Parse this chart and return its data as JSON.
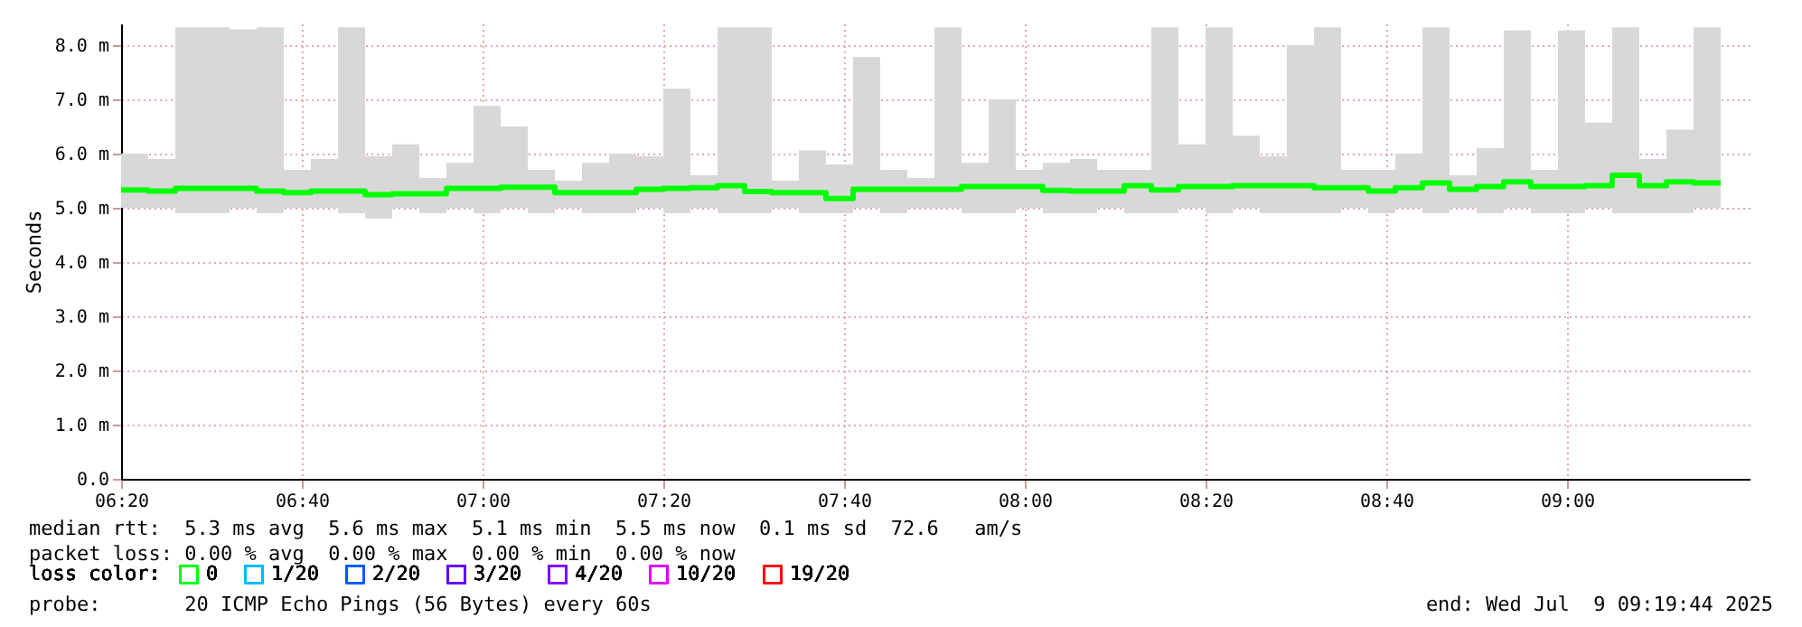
{
  "chart_data": {
    "type": "step",
    "ylabel": "Seconds",
    "legend_title": "loss color:",
    "legend": "bottom left",
    "grid": true,
    "marker": "none",
    "line_style": "solid",
    "x": [
      6.3333,
      6.3833,
      6.4333,
      6.4833,
      6.5333,
      6.5833,
      6.6333,
      6.6833,
      6.7333,
      6.7833,
      6.8333,
      6.8833,
      6.9333,
      6.9833,
      7.0333,
      7.0833,
      7.1333,
      7.1833,
      7.2333,
      7.2833,
      7.3333,
      7.3833,
      7.4333,
      7.4833,
      7.5333,
      7.5833,
      7.6333,
      7.6833,
      7.7333,
      7.7833,
      7.8333,
      7.8833,
      7.9333,
      7.9833,
      8.0333,
      8.0833,
      8.1333,
      8.1833,
      8.2333,
      8.2833,
      8.3333,
      8.3833,
      8.4333,
      8.4833,
      8.5333,
      8.5833,
      8.6333,
      8.6833,
      8.7333,
      8.7833,
      8.8333,
      8.8833,
      8.9333,
      8.9833,
      9.0333,
      9.0833,
      9.1333,
      9.1833,
      9.2333,
      9.2833
    ],
    "xlim": [
      6.3333,
      9.3367
    ],
    "xticks": [
      {
        "value": 6.3333,
        "label": "06:20"
      },
      {
        "value": 6.6667,
        "label": "06:40"
      },
      {
        "value": 7,
        "label": "07:00"
      },
      {
        "value": 7.3333,
        "label": "07:20"
      },
      {
        "value": 7.6667,
        "label": "07:40"
      },
      {
        "value": 8,
        "label": "08:00"
      },
      {
        "value": 8.3333,
        "label": "08:20"
      },
      {
        "value": 8.6667,
        "label": "08:40"
      },
      {
        "value": 9,
        "label": "09:00"
      }
    ],
    "ylim": [
      0,
      8.4
    ],
    "yticks": [
      {
        "value": 0,
        "label": "0.0"
      },
      {
        "value": 1,
        "label": "1.0 m"
      },
      {
        "value": 2,
        "label": "2.0 m"
      },
      {
        "value": 3,
        "label": "3.0 m"
      },
      {
        "value": 4,
        "label": "4.0 m"
      },
      {
        "value": 5,
        "label": "5.0 m"
      },
      {
        "value": 6,
        "label": "6.0 m"
      },
      {
        "value": 7,
        "label": "7.0 m"
      },
      {
        "value": 8,
        "label": "8.0 m"
      }
    ],
    "series": [
      {
        "name": "0",
        "color": "#00ff00",
        "values": [
          5.33,
          5.31,
          5.36,
          5.36,
          5.36,
          5.31,
          5.28,
          5.31,
          5.31,
          5.24,
          5.26,
          5.26,
          5.36,
          5.36,
          5.38,
          5.38,
          5.28,
          5.28,
          5.28,
          5.34,
          5.36,
          5.37,
          5.41,
          5.3,
          5.28,
          5.28,
          5.17,
          5.34,
          5.34,
          5.34,
          5.34,
          5.39,
          5.39,
          5.39,
          5.32,
          5.31,
          5.31,
          5.41,
          5.33,
          5.39,
          5.39,
          5.41,
          5.41,
          5.41,
          5.37,
          5.37,
          5.31,
          5.37,
          5.46,
          5.34,
          5.39,
          5.48,
          5.39,
          5.39,
          5.41,
          5.6,
          5.41,
          5.48,
          5.46,
          5.46
        ],
        "lower": [
          5.0,
          5.0,
          4.9,
          4.9,
          5.0,
          4.9,
          5.0,
          5.0,
          4.9,
          4.8,
          5.0,
          4.9,
          5.0,
          4.9,
          5.0,
          4.9,
          5.0,
          4.9,
          4.9,
          5.0,
          4.9,
          5.0,
          4.9,
          4.9,
          5.0,
          4.9,
          4.9,
          5.0,
          4.9,
          5.0,
          5.0,
          4.9,
          4.9,
          5.0,
          4.9,
          4.9,
          5.0,
          4.9,
          4.9,
          5.0,
          4.9,
          5.0,
          4.9,
          4.9,
          4.9,
          5.0,
          4.9,
          5.0,
          4.9,
          5.0,
          4.9,
          5.0,
          4.9,
          4.9,
          5.0,
          4.9,
          4.9,
          4.9,
          5.0,
          4.9
        ],
        "upper": [
          6.0,
          5.9,
          8.33,
          8.33,
          8.29,
          8.33,
          5.7,
          5.9,
          8.33,
          5.95,
          6.17,
          5.55,
          5.83,
          6.88,
          6.5,
          5.7,
          5.5,
          5.83,
          6.0,
          5.95,
          7.2,
          5.6,
          8.33,
          8.33,
          5.5,
          6.06,
          5.8,
          7.78,
          5.7,
          5.55,
          8.33,
          5.83,
          7.0,
          5.7,
          5.83,
          5.9,
          5.7,
          5.7,
          8.33,
          6.17,
          8.33,
          6.33,
          5.95,
          8.0,
          8.33,
          5.7,
          5.7,
          6.0,
          8.33,
          5.6,
          6.1,
          8.27,
          5.7,
          8.27,
          6.57,
          8.33,
          5.9,
          6.44,
          8.33,
          8.33
        ]
      },
      {
        "name": "1/20",
        "color": "#00b8ff",
        "values": [
          null,
          null,
          null,
          null,
          null,
          null,
          null,
          null,
          null,
          null,
          null,
          null,
          null,
          null,
          null,
          null,
          null,
          null,
          null,
          null,
          null,
          null,
          null,
          null,
          null,
          null,
          null,
          null,
          null,
          null,
          null,
          null,
          null,
          null,
          null,
          null,
          null,
          null,
          null,
          null,
          null,
          null,
          null,
          null,
          null,
          null,
          null,
          null,
          null,
          null,
          null,
          null,
          null,
          null,
          null,
          null,
          null,
          null,
          null,
          null
        ]
      },
      {
        "name": "2/20",
        "color": "#0059ff",
        "values": [
          null,
          null,
          null,
          null,
          null,
          null,
          null,
          null,
          null,
          null,
          null,
          null,
          null,
          null,
          null,
          null,
          null,
          null,
          null,
          null,
          null,
          null,
          null,
          null,
          null,
          null,
          null,
          null,
          null,
          null,
          null,
          null,
          null,
          null,
          null,
          null,
          null,
          null,
          null,
          null,
          null,
          null,
          null,
          null,
          null,
          null,
          null,
          null,
          null,
          null,
          null,
          null,
          null,
          null,
          null,
          null,
          null,
          null,
          null,
          null
        ]
      },
      {
        "name": "3/20",
        "color": "#5e00ff",
        "values": [
          null,
          null,
          null,
          null,
          null,
          null,
          null,
          null,
          null,
          null,
          null,
          null,
          null,
          null,
          null,
          null,
          null,
          null,
          null,
          null,
          null,
          null,
          null,
          null,
          null,
          null,
          null,
          null,
          null,
          null,
          null,
          null,
          null,
          null,
          null,
          null,
          null,
          null,
          null,
          null,
          null,
          null,
          null,
          null,
          null,
          null,
          null,
          null,
          null,
          null,
          null,
          null,
          null,
          null,
          null,
          null,
          null,
          null,
          null,
          null
        ]
      },
      {
        "name": "4/20",
        "color": "#7e00ff",
        "values": [
          null,
          null,
          null,
          null,
          null,
          null,
          null,
          null,
          null,
          null,
          null,
          null,
          null,
          null,
          null,
          null,
          null,
          null,
          null,
          null,
          null,
          null,
          null,
          null,
          null,
          null,
          null,
          null,
          null,
          null,
          null,
          null,
          null,
          null,
          null,
          null,
          null,
          null,
          null,
          null,
          null,
          null,
          null,
          null,
          null,
          null,
          null,
          null,
          null,
          null,
          null,
          null,
          null,
          null,
          null,
          null,
          null,
          null,
          null,
          null
        ]
      },
      {
        "name": "10/20",
        "color": "#dd00ff",
        "values": [
          null,
          null,
          null,
          null,
          null,
          null,
          null,
          null,
          null,
          null,
          null,
          null,
          null,
          null,
          null,
          null,
          null,
          null,
          null,
          null,
          null,
          null,
          null,
          null,
          null,
          null,
          null,
          null,
          null,
          null,
          null,
          null,
          null,
          null,
          null,
          null,
          null,
          null,
          null,
          null,
          null,
          null,
          null,
          null,
          null,
          null,
          null,
          null,
          null,
          null,
          null,
          null,
          null,
          null,
          null,
          null,
          null,
          null,
          null,
          null
        ]
      },
      {
        "name": "19/20",
        "color": "#ff0000",
        "values": [
          null,
          null,
          null,
          null,
          null,
          null,
          null,
          null,
          null,
          null,
          null,
          null,
          null,
          null,
          null,
          null,
          null,
          null,
          null,
          null,
          null,
          null,
          null,
          null,
          null,
          null,
          null,
          null,
          null,
          null,
          null,
          null,
          null,
          null,
          null,
          null,
          null,
          null,
          null,
          null,
          null,
          null,
          null,
          null,
          null,
          null,
          null,
          null,
          null,
          null,
          null,
          null,
          null,
          null,
          null,
          null,
          null,
          null,
          null,
          null
        ]
      }
    ],
    "annotations": [
      "median rtt:  5.3 ms avg  5.6 ms max  5.1 ms min  5.5 ms now  0.1 ms sd  72.6   am/s",
      "packet loss: 0.00 % avg  0.00 % max  0.00 % min  0.00 % now",
      "probe:       20 ICMP Echo Pings (56 Bytes) every 60s",
      "end: Wed Jul  9 09:19:44 2025"
    ]
  }
}
